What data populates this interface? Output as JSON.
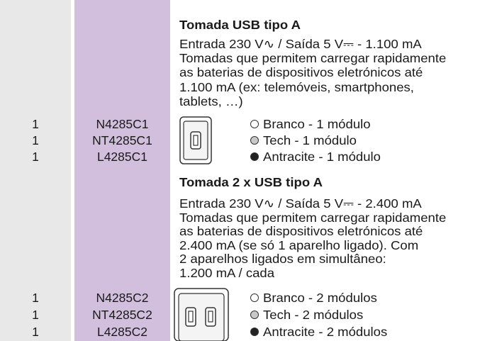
{
  "products": [
    {
      "title": "Tomada USB tipo A",
      "description": [
        "Entrada 230 V∿ / Saída 5 V⎓ - 1.100 mA",
        "Tomadas que permitem carregar rapidamente",
        "as baterias de dispositivos eletrónicos até",
        "1.100 mA (ex: telemóveis, smartphones,",
        "tablets, …)"
      ],
      "variants": [
        {
          "quantity": "1",
          "code": "N4285C1",
          "label": "Branco - 1 módulo",
          "swatch": "#ffffff"
        },
        {
          "quantity": "1",
          "code": "NT4285C1",
          "label": "Tech - 1 módulo",
          "swatch": "#c8c8c8"
        },
        {
          "quantity": "1",
          "code": "L4285C1",
          "label": "Antracite - 1 módulo",
          "swatch": "#222222"
        }
      ]
    },
    {
      "title": "Tomada 2 x USB tipo A",
      "description": [
        "Entrada 230 V∿ / Saída 5 V⎓ - 2.400 mA",
        "Tomadas que permitem carregar rapidamente",
        "as baterias de dispositivos eletrónicos até",
        "2.400 mA (se só 1 aparelho ligado). Com",
        "2 aparelhos ligados em simultâneo:",
        "1.200 mA / cada"
      ],
      "variants": [
        {
          "quantity": "1",
          "code": "N4285C2",
          "label": "Branco - 2 módulos",
          "swatch": "#ffffff"
        },
        {
          "quantity": "1",
          "code": "NT4285C2",
          "label": "Tech - 2 módulos",
          "swatch": "#c8c8c8"
        },
        {
          "quantity": "1",
          "code": "L4285C2",
          "label": "Antracite - 2 módulos",
          "swatch": "#222222"
        }
      ]
    }
  ]
}
